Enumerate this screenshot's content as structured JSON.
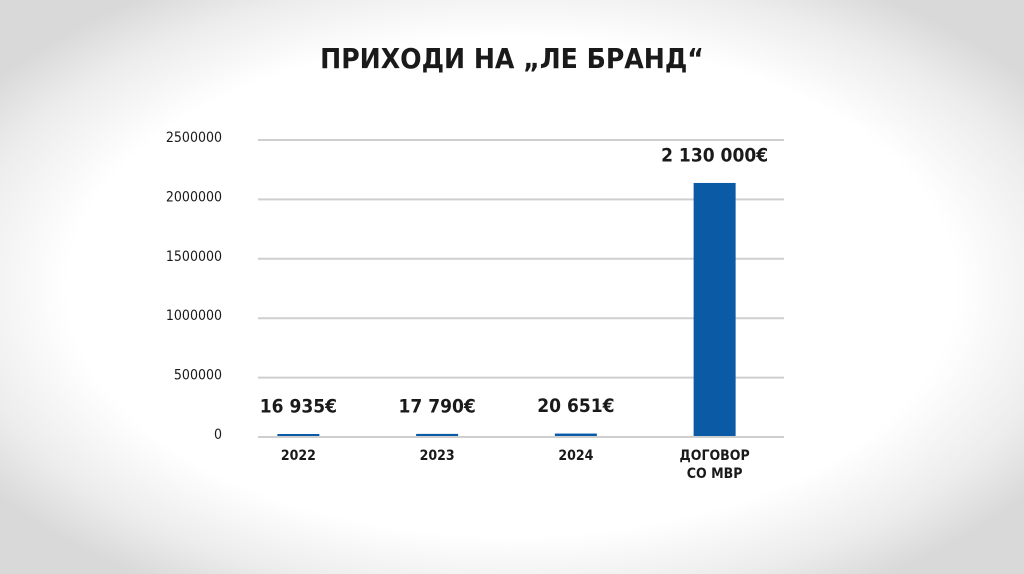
{
  "chart_data": {
    "type": "bar",
    "title": "ПРИХОДИ НА „ЛЕ БРАНД“",
    "categories": [
      "2022",
      "2023",
      "2024",
      "ДОГОВОР СО МВР"
    ],
    "values": [
      16935,
      17790,
      20651,
      2130000
    ],
    "value_labels": [
      "16 935€",
      "17 790€",
      "20 651€",
      "2 130 000€"
    ],
    "color": "#0b5aa6",
    "ylim": [
      0,
      2500000
    ],
    "yticks": [
      0,
      500000,
      1000000,
      1500000,
      2000000,
      2500000
    ],
    "grid": true
  }
}
